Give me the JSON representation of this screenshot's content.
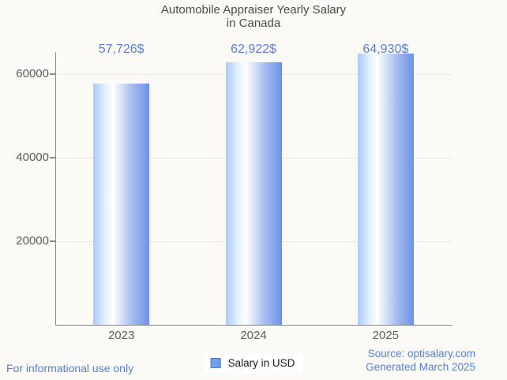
{
  "title": {
    "line1": "Automobile Appraiser Yearly Salary",
    "line2": "in Canada"
  },
  "chart_data": {
    "type": "bar",
    "categories": [
      "2023",
      "2024",
      "2025"
    ],
    "series": [
      {
        "name": "Salary in USD",
        "values": [
          57726,
          62922,
          64930
        ]
      }
    ],
    "value_labels": [
      "57,726$",
      "62,922$",
      "64,930$"
    ],
    "title": "Automobile Appraiser Yearly Salary in Canada",
    "xlabel": "",
    "ylabel": "",
    "yticks": [
      20000,
      40000,
      60000
    ],
    "ytick_labels": [
      "20000",
      "40000",
      "60000"
    ],
    "ylim": [
      0,
      65300
    ],
    "grid": "horizontal",
    "legend_position": "bottom-center",
    "bar_gradient": [
      "#a7cbf8",
      "#ffffff",
      "#6b90e8"
    ]
  },
  "legend": {
    "label": "Salary in USD",
    "swatch_color": "#6fa1e8"
  },
  "footer": {
    "disclaimer": "For informational use only",
    "source": "Source: optisalary.com",
    "generated": "Generated March 2025"
  },
  "colors": {
    "background": "#fbfaf7",
    "axis": "#8c8c8c",
    "gridline": "#e7e7e4",
    "value_label": "#5b80d2",
    "footer_text": "#5580d0",
    "tick_label": "#5c5c5c",
    "title_text": "#4a4a4a"
  }
}
